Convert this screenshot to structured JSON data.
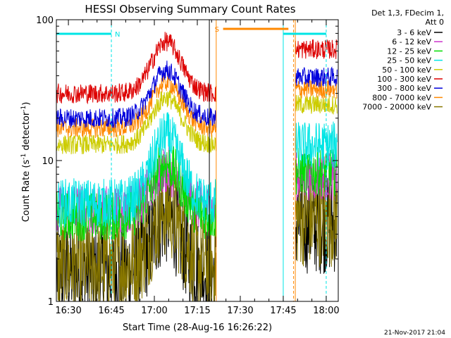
{
  "chart_data": {
    "type": "line",
    "title": "HESSI Observing Summary Count Rates",
    "xlabel": "Start Time (28-Aug-16 16:26:22)",
    "ylabel_main": "Count Rate (s",
    "ylabel_sup1": "-1",
    "ylabel_mid": " detector",
    "ylabel_sup2": "-1",
    "ylabel_end": ")",
    "y_scale": "log",
    "ylim": [
      1,
      100
    ],
    "xlim_minutes": [
      16.43,
      18.07
    ],
    "x_ticks": [
      {
        "label": "16:30",
        "hours": 16.5
      },
      {
        "label": "16:45",
        "hours": 16.75
      },
      {
        "label": "17:00",
        "hours": 17.0
      },
      {
        "label": "17:15",
        "hours": 17.25
      },
      {
        "label": "17:30",
        "hours": 17.5
      },
      {
        "label": "17:45",
        "hours": 17.75
      },
      {
        "label": "18:00",
        "hours": 18.0
      }
    ],
    "y_ticks": [
      {
        "label": "1",
        "value": 1
      },
      {
        "label": "10",
        "value": 10
      },
      {
        "label": "100",
        "value": 100
      }
    ],
    "legend_header": [
      "Det 1,3, FDecim 1,",
      "Att 0"
    ],
    "series": [
      {
        "name": "3 - 6 keV",
        "color": "#000000",
        "base": 1.6,
        "peak": 4.0
      },
      {
        "name": "6 - 12 keV",
        "color": "#cc33cc",
        "base": 4.5,
        "peak": 8.5
      },
      {
        "name": "12 - 25 keV",
        "color": "#00dd00",
        "base": 4.0,
        "peak": 9.5
      },
      {
        "name": "25 - 50 keV",
        "color": "#00e5e5",
        "base": 5.0,
        "peak": 15.0
      },
      {
        "name": "50 - 100 keV",
        "color": "#cccc00",
        "base": 13.0,
        "peak": 28.0
      },
      {
        "name": "100 - 300 keV",
        "color": "#dd0000",
        "base": 30.0,
        "peak": 70.0
      },
      {
        "name": "300 - 800 keV",
        "color": "#0000dd",
        "base": 20.0,
        "peak": 44.0
      },
      {
        "name": "800 - 7000 keV",
        "color": "#ff8800",
        "base": 17.0,
        "peak": 36.0
      },
      {
        "name": "7000 - 20000 keV",
        "color": "#887700",
        "base": 1.8,
        "peak": 4.5
      }
    ],
    "markers": [
      {
        "label": "N",
        "color": "#00e5e5",
        "x_start": 16.43,
        "x_end": 16.75
      },
      {
        "label": "S",
        "color": "#ff8800",
        "x_start": 17.4,
        "x_end": 17.78
      },
      {
        "label": "",
        "color": "#00e5e5",
        "x_start": 17.75,
        "x_end": 18.0
      }
    ],
    "gaps": [
      {
        "x_start": 17.36,
        "x_end": 17.82
      }
    ],
    "footer_date": "21-Nov-2017 21:04"
  }
}
